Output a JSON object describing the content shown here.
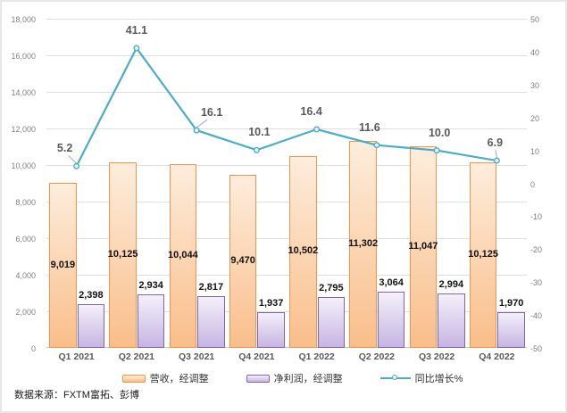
{
  "chart_data": {
    "type": "combo-bar-line",
    "categories": [
      "Q1 2021",
      "Q2 2021",
      "Q3 2021",
      "Q4 2021",
      "Q1 2022",
      "Q2 2022",
      "Q3 2022",
      "Q4 2022"
    ],
    "series": [
      {
        "name": "营收，经调整",
        "type": "bar",
        "axis": "left",
        "values": [
          9019,
          10125,
          10044,
          9470,
          10502,
          11302,
          11047,
          10125
        ],
        "labels": [
          "9,019",
          "10,125",
          "10,044",
          "9,470",
          "10,502",
          "11,302",
          "11,047",
          "10,125"
        ]
      },
      {
        "name": "净利润，经调整",
        "type": "bar",
        "axis": "left",
        "values": [
          2398,
          2934,
          2817,
          1937,
          2795,
          3064,
          2994,
          1970
        ],
        "labels": [
          "2,398",
          "2,934",
          "2,817",
          "1,937",
          "2,795",
          "3,064",
          "2,994",
          "1,970"
        ]
      },
      {
        "name": "同比增长%",
        "type": "line",
        "axis": "right",
        "values": [
          5.2,
          41.1,
          16.1,
          10.1,
          16.4,
          11.6,
          10.0,
          6.9
        ],
        "labels": [
          "5.2",
          "41.1",
          "16.1",
          "10.1",
          "16.4",
          "11.6",
          "10.0",
          "6.9"
        ]
      }
    ],
    "left_axis": {
      "min": 0,
      "max": 18000,
      "step": 2000,
      "tick_labels": [
        "0",
        "2,000",
        "4,000",
        "6,000",
        "8,000",
        "10,000",
        "12,000",
        "14,000",
        "16,000",
        "18,000"
      ]
    },
    "right_axis": {
      "min": -50,
      "max": 50,
      "step": 10,
      "tick_labels": [
        "-50",
        "-40",
        "-30",
        "-20",
        "-10",
        "0",
        "10",
        "20",
        "30",
        "40",
        "50"
      ]
    },
    "grid": true,
    "legend_position": "bottom",
    "line_label_offsets_x": [
      -13,
      0,
      17,
      3,
      -6,
      -8,
      3,
      -2
    ],
    "line_label_leaders": [
      true,
      false,
      true,
      false,
      false,
      false,
      false,
      true
    ]
  },
  "source_note": "数据来源：FXTM富拓、彭博",
  "colors": {
    "revenue_fill_top": "#fdeddc",
    "revenue_fill_bottom": "#f9be8a",
    "revenue_border": "#ef9550",
    "profit_fill_top": "#f4f0fa",
    "profit_fill_bottom": "#c6b5e2",
    "profit_border": "#8464a8",
    "line": "#4bacc6",
    "marker_fill": "#eaf5f9",
    "grid": "#dedede",
    "leader": "#a6a6a6"
  }
}
